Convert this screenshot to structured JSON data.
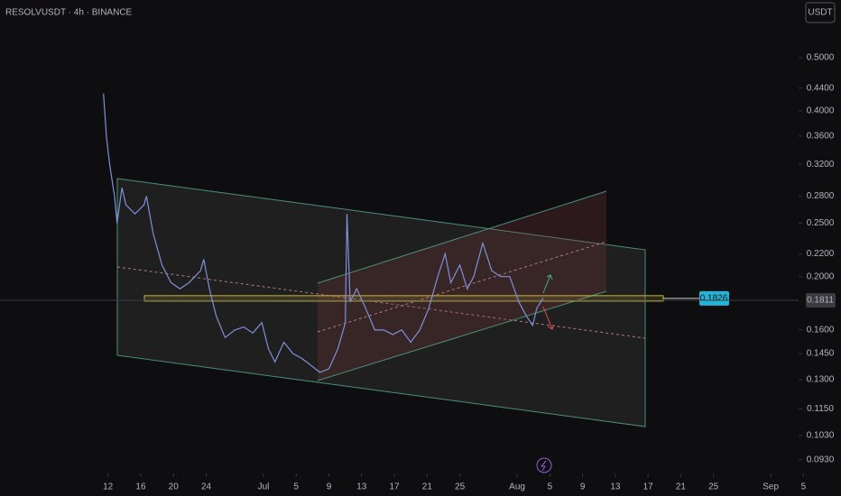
{
  "chart_data": {
    "type": "line",
    "title": "RESOLVUSDT · 4h · BINANCE",
    "currency": "USDT",
    "log_scale": true,
    "xlim": [
      -1.2,
      96.4
    ],
    "ylim": [
      0.0878,
      0.636
    ],
    "xticks": [
      {
        "value": 12,
        "label": "12"
      },
      {
        "value": 16,
        "label": "16"
      },
      {
        "value": 20,
        "label": "20"
      },
      {
        "value": 24,
        "label": "24"
      },
      {
        "value": 31,
        "label": "Jul"
      },
      {
        "value": 35,
        "label": "5"
      },
      {
        "value": 39,
        "label": "9"
      },
      {
        "value": 43,
        "label": "13"
      },
      {
        "value": 47,
        "label": "17"
      },
      {
        "value": 51,
        "label": "21"
      },
      {
        "value": 55,
        "label": "25"
      },
      {
        "value": 62,
        "label": "Aug"
      },
      {
        "value": 66,
        "label": "5"
      },
      {
        "value": 70,
        "label": "9"
      },
      {
        "value": 74,
        "label": "13"
      },
      {
        "value": 78,
        "label": "17"
      },
      {
        "value": 82,
        "label": "21"
      },
      {
        "value": 86,
        "label": "25"
      },
      {
        "value": 93,
        "label": "Sep"
      },
      {
        "value": 97,
        "label": "5"
      }
    ],
    "yticks": [
      {
        "value": 0.5,
        "label": "0.5000"
      },
      {
        "value": 0.44,
        "label": "0.4400"
      },
      {
        "value": 0.4,
        "label": "0.4000"
      },
      {
        "value": 0.36,
        "label": "0.3600"
      },
      {
        "value": 0.32,
        "label": "0.3200"
      },
      {
        "value": 0.28,
        "label": "0.2800"
      },
      {
        "value": 0.25,
        "label": "0.2500"
      },
      {
        "value": 0.22,
        "label": "0.2200"
      },
      {
        "value": 0.2,
        "label": "0.2000"
      },
      {
        "value": 0.16,
        "label": "0.1600"
      },
      {
        "value": 0.145,
        "label": "0.1450"
      },
      {
        "value": 0.13,
        "label": "0.1300"
      },
      {
        "value": 0.115,
        "label": "0.1150"
      },
      {
        "value": 0.103,
        "label": "0.1030"
      },
      {
        "value": 0.093,
        "label": "0.0930"
      }
    ],
    "last_price": 0.1811,
    "level_price": 0.1826,
    "series": [
      {
        "name": "RESOLVUSDT",
        "color": "#7f8fd8",
        "x": [
          11.45,
          11.8,
          12.2,
          12.8,
          13.1,
          13.7,
          14.2,
          15.3,
          16.4,
          16.7,
          17.5,
          18.6,
          19.7,
          20.8,
          21.9,
          23.3,
          23.7,
          24.4,
          25.2,
          26.3,
          27.5,
          28.6,
          29.7,
          30.8,
          31.6,
          32.4,
          33.5,
          34.6,
          35.7,
          36.8,
          37.9,
          39.0,
          40.1,
          41.0,
          41.2,
          41.6,
          42.4,
          43.5,
          44.6,
          45.7,
          46.8,
          47.9,
          49.0,
          50.1,
          51.2,
          52.3,
          53.2,
          53.9,
          55.0,
          55.9,
          56.7,
          57.8,
          58.9,
          60.0,
          61.1,
          62.2,
          63.1,
          63.9,
          64.4,
          65.2
        ],
        "values": [
          0.43,
          0.36,
          0.32,
          0.28,
          0.25,
          0.29,
          0.27,
          0.26,
          0.27,
          0.28,
          0.24,
          0.21,
          0.195,
          0.19,
          0.195,
          0.205,
          0.215,
          0.19,
          0.17,
          0.155,
          0.16,
          0.162,
          0.158,
          0.165,
          0.148,
          0.14,
          0.152,
          0.145,
          0.142,
          0.138,
          0.134,
          0.136,
          0.148,
          0.165,
          0.26,
          0.18,
          0.19,
          0.175,
          0.16,
          0.16,
          0.157,
          0.16,
          0.152,
          0.16,
          0.175,
          0.2,
          0.22,
          0.195,
          0.21,
          0.19,
          0.2,
          0.23,
          0.205,
          0.2,
          0.2,
          0.18,
          0.17,
          0.163,
          0.175,
          0.183
        ]
      }
    ]
  }
}
